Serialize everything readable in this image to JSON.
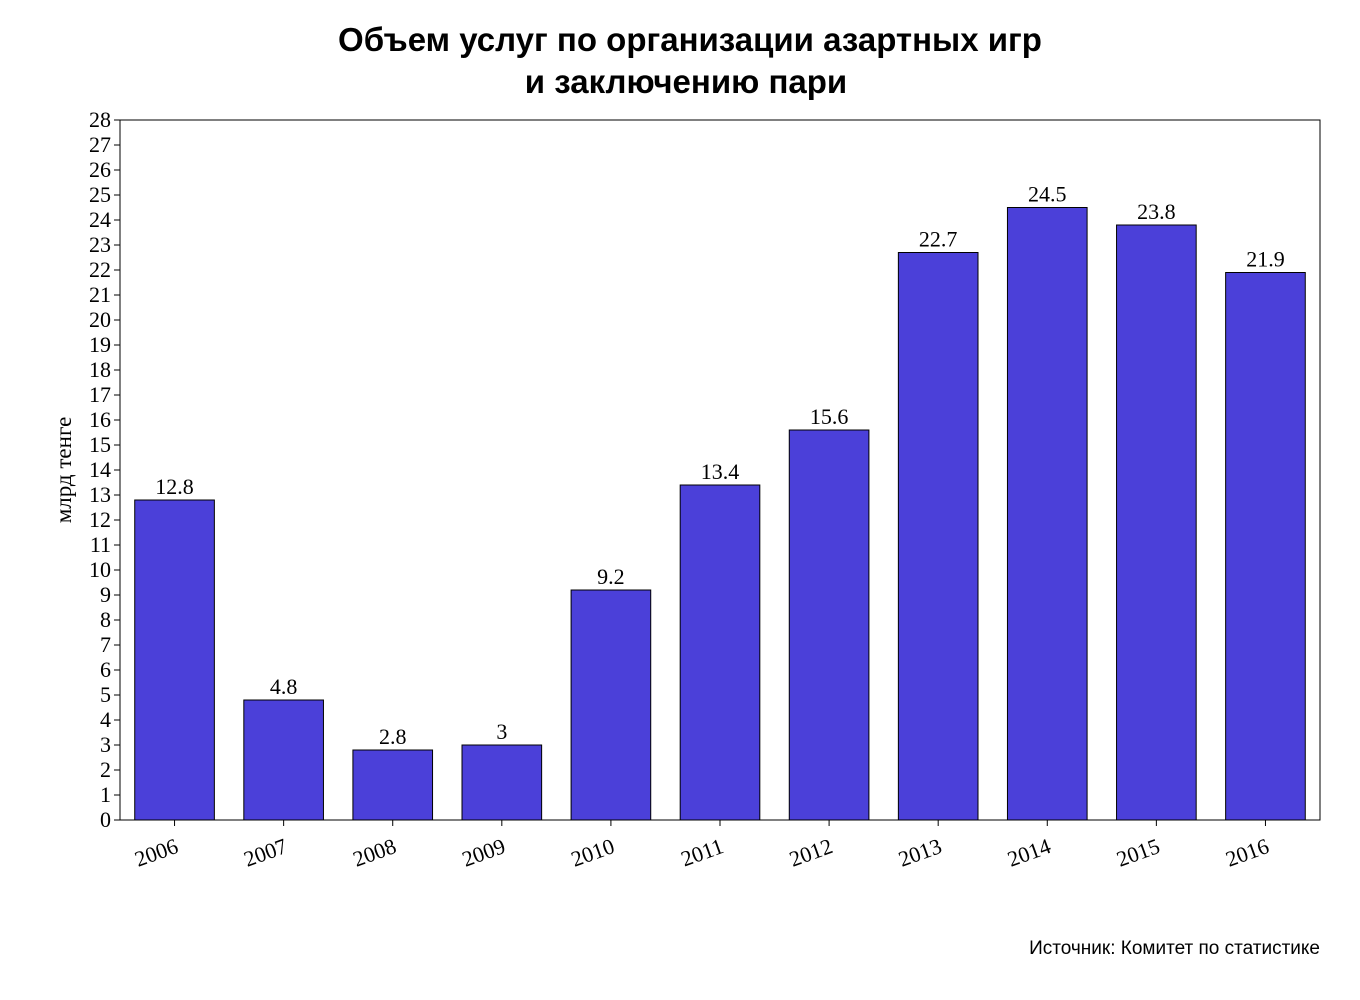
{
  "chart_data": {
    "type": "bar",
    "title_lines": [
      "Объем услуг по организации азартных игр",
      "и заключению пари"
    ],
    "ylabel": "млрд тенге",
    "xlabel": "",
    "categories": [
      "2006",
      "2007",
      "2008",
      "2009",
      "2010",
      "2011",
      "2012",
      "2013",
      "2014",
      "2015",
      "2016"
    ],
    "values": [
      12.8,
      4.8,
      2.8,
      3,
      9.2,
      13.4,
      15.6,
      22.7,
      24.5,
      23.8,
      21.9
    ],
    "data_labels": [
      "12.8",
      "4.8",
      "2.8",
      "3",
      "9.2",
      "13.4",
      "15.6",
      "22.7",
      "24.5",
      "23.8",
      "21.9"
    ],
    "ylim": [
      0,
      28
    ],
    "y_ticks": [
      "0",
      "1",
      "2",
      "3",
      "4",
      "5",
      "6",
      "7",
      "8",
      "9",
      "10",
      "11",
      "12",
      "13",
      "14",
      "15",
      "16",
      "17",
      "18",
      "19",
      "20",
      "21",
      "22",
      "23",
      "24",
      "25",
      "26",
      "27",
      "28"
    ],
    "grid": false,
    "legend": "none",
    "bar_color": "#4b40d9",
    "source": "Источник: Комитет по статистике"
  }
}
